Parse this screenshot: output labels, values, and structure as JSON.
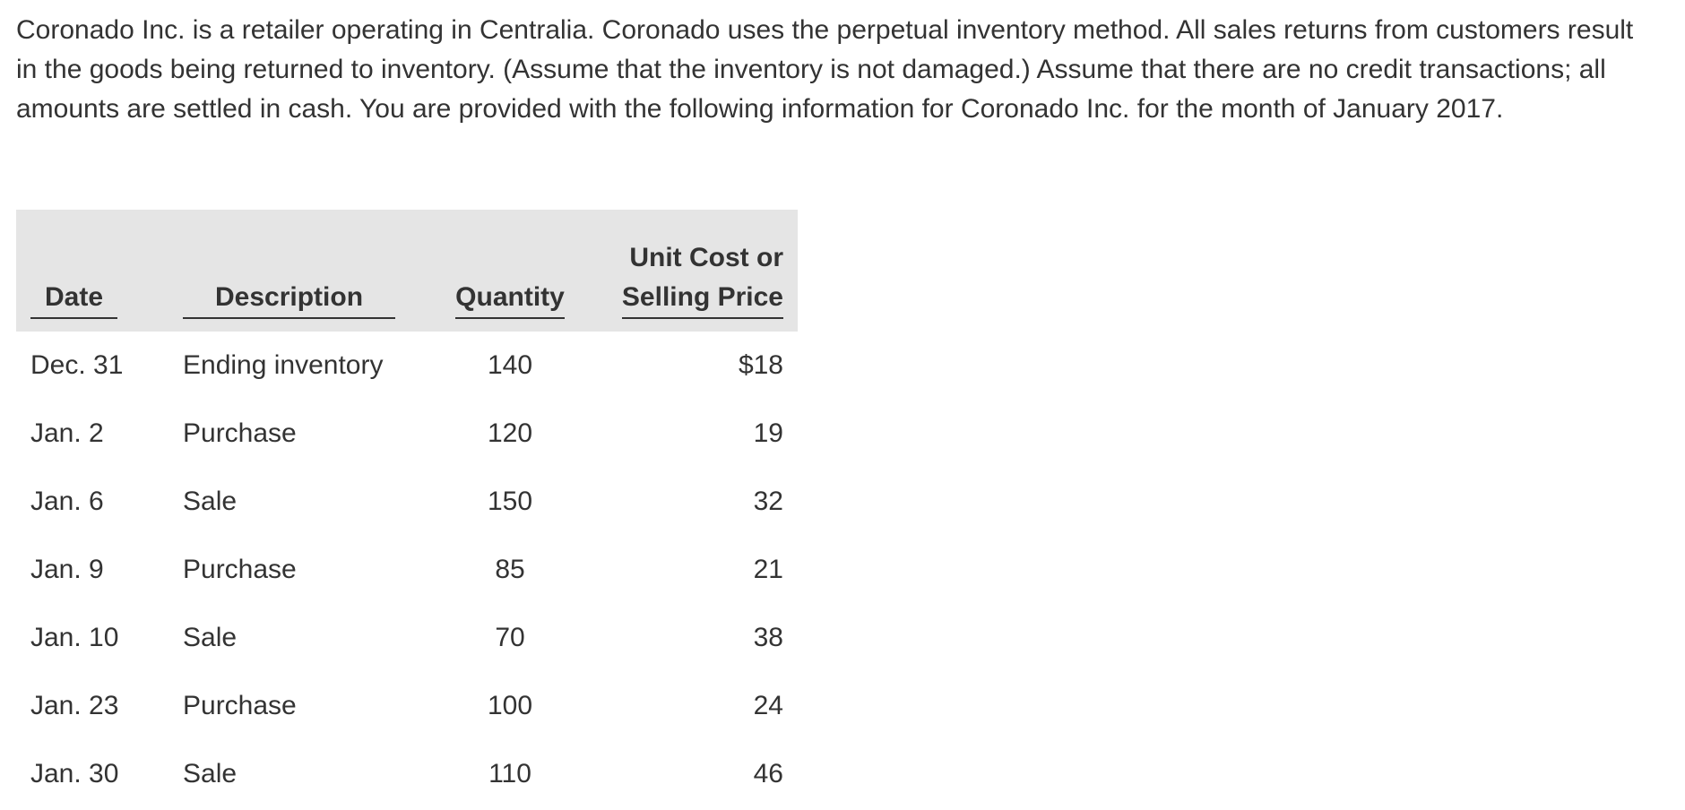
{
  "intro": "Coronado Inc. is a retailer operating in Centralia. Coronado uses the perpetual inventory method. All sales returns from customers result in the goods being returned to inventory. (Assume that the inventory is not damaged.) Assume that there are no credit transactions; all amounts are settled in cash. You are provided with the following information for Coronado Inc. for the month of January 2017.",
  "table": {
    "headers": {
      "date": "Date",
      "description": "Description",
      "quantity": "Quantity",
      "price_line1": "Unit Cost or",
      "price_line2": "Selling Price"
    },
    "rows": [
      {
        "date": "Dec. 31",
        "description": "Ending inventory",
        "quantity": "140",
        "price": "$18"
      },
      {
        "date": "Jan. 2",
        "description": "Purchase",
        "quantity": "120",
        "price": "19"
      },
      {
        "date": "Jan. 6",
        "description": "Sale",
        "quantity": "150",
        "price": "32"
      },
      {
        "date": "Jan. 9",
        "description": "Purchase",
        "quantity": "85",
        "price": "21"
      },
      {
        "date": "Jan. 10",
        "description": "Sale",
        "quantity": "70",
        "price": "38"
      },
      {
        "date": "Jan. 23",
        "description": "Purchase",
        "quantity": "100",
        "price": "24"
      },
      {
        "date": "Jan. 30",
        "description": "Sale",
        "quantity": "110",
        "price": "46"
      }
    ]
  }
}
